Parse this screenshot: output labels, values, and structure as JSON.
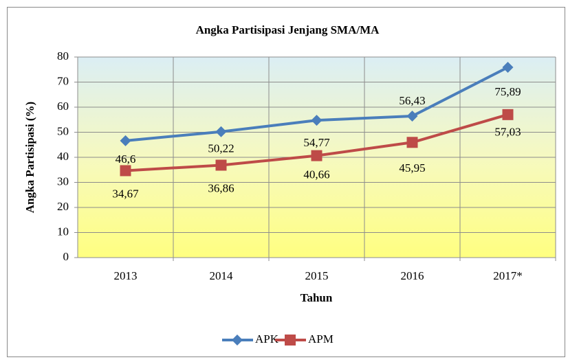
{
  "chart_data": {
    "type": "line",
    "title": "Angka Partisipasi Jenjang SMA/MA",
    "xlabel": "Tahun",
    "ylabel": "Angka Partisipasi (%)",
    "categories": [
      "2013",
      "2014",
      "2015",
      "2016",
      "2017*"
    ],
    "series": [
      {
        "name": "APK",
        "color": "#4a7ebb",
        "marker": "diamond",
        "values": [
          46.6,
          50.22,
          54.77,
          56.43,
          75.89
        ],
        "value_labels": [
          "46,6",
          "50,22",
          "54,77",
          "56,43",
          "75,89"
        ]
      },
      {
        "name": "APM",
        "color": "#be4b48",
        "marker": "square",
        "values": [
          34.67,
          36.86,
          40.66,
          45.95,
          57.03
        ],
        "value_labels": [
          "34,67",
          "36,86",
          "40,66",
          "45,95",
          "57,03"
        ]
      }
    ],
    "ylim": [
      0,
      80
    ],
    "yticks": [
      0,
      10,
      20,
      30,
      40,
      50,
      60,
      70,
      80
    ],
    "grid": true,
    "legend": "bottom"
  }
}
